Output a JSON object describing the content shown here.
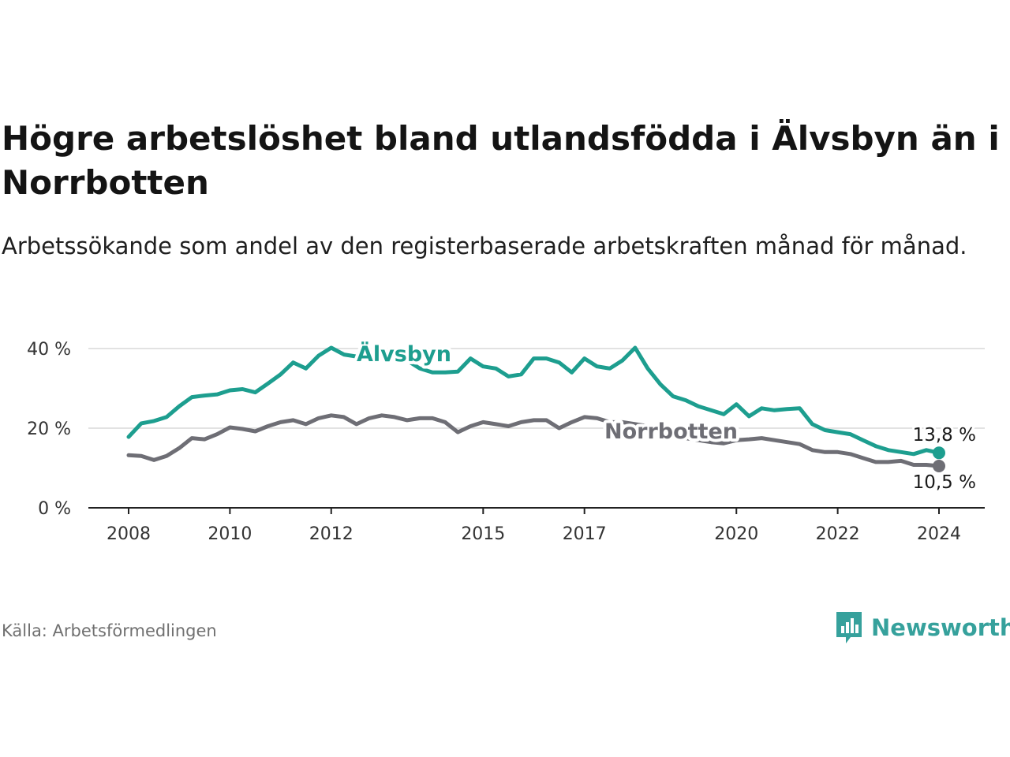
{
  "title": "Högre arbetslöshet bland utlandsfödda i Älvsbyn än i Norrbotten",
  "subtitle": "Arbetssökande som andel av den registerbaserade arbetskraften månad för månad.",
  "source": "Källa: Arbetsförmedlingen",
  "brand": {
    "name": "Newsworthy",
    "icon": "newsworthy-logo-icon",
    "color": "#36a19c"
  },
  "chart_data": {
    "type": "line",
    "x_range": [
      2008.0,
      2024.0
    ],
    "ylim": [
      0,
      40
    ],
    "y_ticks": [
      {
        "value": 0,
        "label": "0 %"
      },
      {
        "value": 20,
        "label": "20 %"
      },
      {
        "value": 40,
        "label": "40 %"
      }
    ],
    "x_ticks": [
      {
        "value": 2008,
        "label": "2008"
      },
      {
        "value": 2010,
        "label": "2010"
      },
      {
        "value": 2012,
        "label": "2012"
      },
      {
        "value": 2015,
        "label": "2015"
      },
      {
        "value": 2017,
        "label": "2017"
      },
      {
        "value": 2020,
        "label": "2020"
      },
      {
        "value": 2022,
        "label": "2022"
      },
      {
        "value": 2024,
        "label": "2024"
      }
    ],
    "grid": true,
    "series": [
      {
        "name": "Älvsbyn",
        "color": "#1d9e8f",
        "end_label": "13,8 %",
        "x": [
          2008.0,
          2008.25,
          2008.5,
          2008.75,
          2009.0,
          2009.25,
          2009.5,
          2009.75,
          2010.0,
          2010.25,
          2010.5,
          2010.75,
          2011.0,
          2011.25,
          2011.5,
          2011.75,
          2012.0,
          2012.25,
          2012.5,
          2012.75,
          2013.0,
          2013.25,
          2013.5,
          2013.75,
          2014.0,
          2014.25,
          2014.5,
          2014.75,
          2015.0,
          2015.25,
          2015.5,
          2015.75,
          2016.0,
          2016.25,
          2016.5,
          2016.75,
          2017.0,
          2017.25,
          2017.5,
          2017.75,
          2018.0,
          2018.25,
          2018.5,
          2018.75,
          2019.0,
          2019.25,
          2019.5,
          2019.75,
          2020.0,
          2020.25,
          2020.5,
          2020.75,
          2021.0,
          2021.25,
          2021.5,
          2021.75,
          2022.0,
          2022.25,
          2022.5,
          2022.75,
          2023.0,
          2023.25,
          2023.5,
          2023.75,
          2024.0
        ],
        "values": [
          17.8,
          21.2,
          21.8,
          22.8,
          25.5,
          27.8,
          28.2,
          28.5,
          29.5,
          29.8,
          29.0,
          31.2,
          33.5,
          36.5,
          35.0,
          38.2,
          40.2,
          38.5,
          38.0,
          38.5,
          39.0,
          38.0,
          37.0,
          35.0,
          34.0,
          34.0,
          34.2,
          37.5,
          35.5,
          35.0,
          33.0,
          33.5,
          37.5,
          37.5,
          36.5,
          34.0,
          37.5,
          35.5,
          35.0,
          37.0,
          40.2,
          35.0,
          31.0,
          28.0,
          27.0,
          25.5,
          24.5,
          23.5,
          26.0,
          23.0,
          25.0,
          24.5,
          24.8,
          25.0,
          21.0,
          19.5,
          19.0,
          18.5,
          17.0,
          15.5,
          14.5,
          14.0,
          13.5,
          14.5,
          13.8
        ]
      },
      {
        "name": "Norrbotten",
        "color": "#6e6e75",
        "end_label": "10,5 %",
        "x": [
          2008.0,
          2008.25,
          2008.5,
          2008.75,
          2009.0,
          2009.25,
          2009.5,
          2009.75,
          2010.0,
          2010.25,
          2010.5,
          2010.75,
          2011.0,
          2011.25,
          2011.5,
          2011.75,
          2012.0,
          2012.25,
          2012.5,
          2012.75,
          2013.0,
          2013.25,
          2013.5,
          2013.75,
          2014.0,
          2014.25,
          2014.5,
          2014.75,
          2015.0,
          2015.25,
          2015.5,
          2015.75,
          2016.0,
          2016.25,
          2016.5,
          2016.75,
          2017.0,
          2017.25,
          2017.5,
          2017.75,
          2018.0,
          2018.25,
          2018.5,
          2018.75,
          2019.0,
          2019.25,
          2019.5,
          2019.75,
          2020.0,
          2020.25,
          2020.5,
          2020.75,
          2021.0,
          2021.25,
          2021.5,
          2021.75,
          2022.0,
          2022.25,
          2022.5,
          2022.75,
          2023.0,
          2023.25,
          2023.5,
          2023.75,
          2024.0
        ],
        "values": [
          13.2,
          13.0,
          12.0,
          13.0,
          15.0,
          17.5,
          17.2,
          18.5,
          20.2,
          19.8,
          19.2,
          20.5,
          21.5,
          22.0,
          21.0,
          22.5,
          23.2,
          22.8,
          21.0,
          22.5,
          23.2,
          22.8,
          22.0,
          22.5,
          22.5,
          21.5,
          19.0,
          20.5,
          21.5,
          21.0,
          20.5,
          21.5,
          22.0,
          22.0,
          20.0,
          21.5,
          22.8,
          22.5,
          21.5,
          21.5,
          21.0,
          20.5,
          19.0,
          18.5,
          17.5,
          17.0,
          16.5,
          16.2,
          17.0,
          17.2,
          17.5,
          17.0,
          16.5,
          16.0,
          14.5,
          14.0,
          14.0,
          13.5,
          12.5,
          11.5,
          11.5,
          11.8,
          10.8,
          10.8,
          10.5
        ]
      }
    ]
  }
}
